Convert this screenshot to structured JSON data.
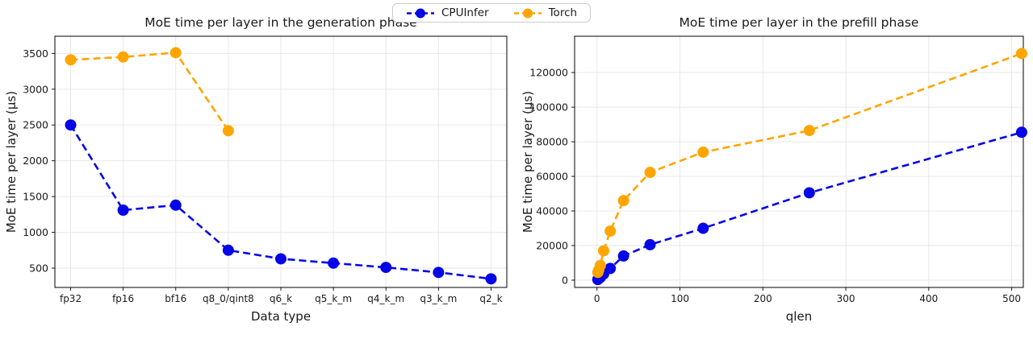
{
  "figure": {
    "background": "#ffffff",
    "text_color": "#1a1a1a",
    "grid_color": "#e6e6e6"
  },
  "legend": {
    "items": [
      {
        "label": "CPUInfer",
        "color": "#0505e8"
      },
      {
        "label": "Torch",
        "color": "#ffa500"
      }
    ]
  },
  "chart_data": [
    {
      "type": "line",
      "title": "MoE time per layer in the generation phase",
      "xlabel": "Data type",
      "ylabel": "MoE time per layer (μs)",
      "categories": [
        "fp32",
        "fp16",
        "bf16",
        "q8_0/qint8",
        "q6_k",
        "q5_k_m",
        "q4_k_m",
        "q3_k_m",
        "q2_k"
      ],
      "yticks": [
        500,
        1000,
        1500,
        2000,
        2500,
        3000,
        3500
      ],
      "ylim": [
        230,
        3740
      ],
      "grid": true,
      "line_style": "dashed",
      "legend_position": "figure-top-center",
      "series": [
        {
          "name": "CPUInfer",
          "color": "#0505e8",
          "values": [
            2500,
            1310,
            1380,
            750,
            630,
            570,
            510,
            440,
            350
          ]
        },
        {
          "name": "Torch",
          "color": "#ffa500",
          "values": [
            3410,
            3450,
            3510,
            2420,
            null,
            null,
            null,
            null,
            null
          ]
        }
      ]
    },
    {
      "type": "line",
      "title": "MoE time per layer in the prefill phase",
      "xlabel": "qlen",
      "ylabel": "MoE time per layer (μs)",
      "x": [
        1,
        2,
        4,
        8,
        16,
        32,
        64,
        128,
        256,
        512
      ],
      "xticks": [
        0,
        100,
        200,
        300,
        400,
        500
      ],
      "xlim": [
        -27,
        514
      ],
      "yticks": [
        0,
        20000,
        40000,
        60000,
        80000,
        100000,
        120000
      ],
      "ylim": [
        -4200,
        141000
      ],
      "grid": true,
      "line_style": "dashed",
      "series": [
        {
          "name": "CPUInfer",
          "color": "#0505e8",
          "values": [
            400,
            800,
            1600,
            3600,
            6800,
            14000,
            20500,
            30000,
            50500,
            85500
          ]
        },
        {
          "name": "Torch",
          "color": "#ffa500",
          "values": [
            4500,
            5800,
            8500,
            17000,
            28400,
            46000,
            62300,
            74000,
            86500,
            131000
          ]
        }
      ]
    }
  ]
}
